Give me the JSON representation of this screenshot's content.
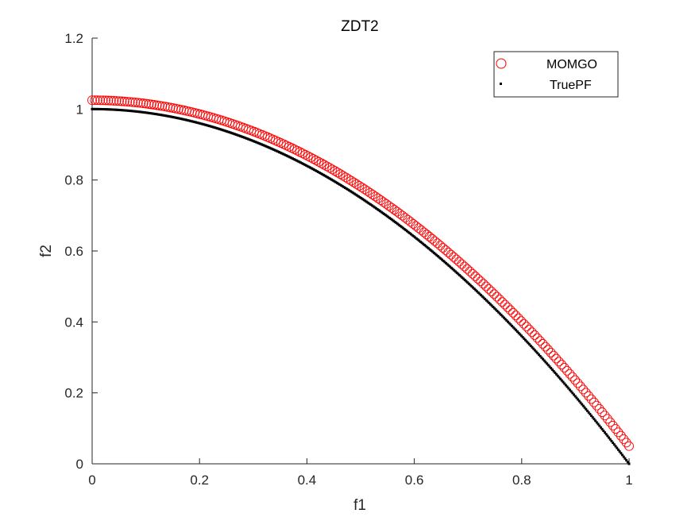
{
  "chart_data": {
    "type": "scatter",
    "title": "ZDT2",
    "xlabel": "f1",
    "ylabel": "f2",
    "xlim": [
      0,
      1
    ],
    "ylim": [
      0,
      1.2
    ],
    "xticks": [
      "0",
      "0.2",
      "0.4",
      "0.6",
      "0.8",
      "1"
    ],
    "yticks": [
      "0",
      "0.2",
      "0.4",
      "0.6",
      "0.8",
      "1",
      "1.2"
    ],
    "grid": false,
    "legend_position": "top-right",
    "series": [
      {
        "name": "MOMGO",
        "marker": "circle",
        "color": "#ff0000",
        "x_start": 0,
        "x_end": 1,
        "count": 200,
        "model": "y = 1.025 - 0.975 * x^2",
        "y_at_x0": 1.025,
        "y_at_x1": 0.05
      },
      {
        "name": "TruePF",
        "marker": "dot",
        "color": "#000000",
        "x_start": 0,
        "x_end": 1,
        "count": 400,
        "model": "y = 1 - x^2",
        "y_at_x0": 1.0,
        "y_at_x1": 0.0
      }
    ]
  }
}
